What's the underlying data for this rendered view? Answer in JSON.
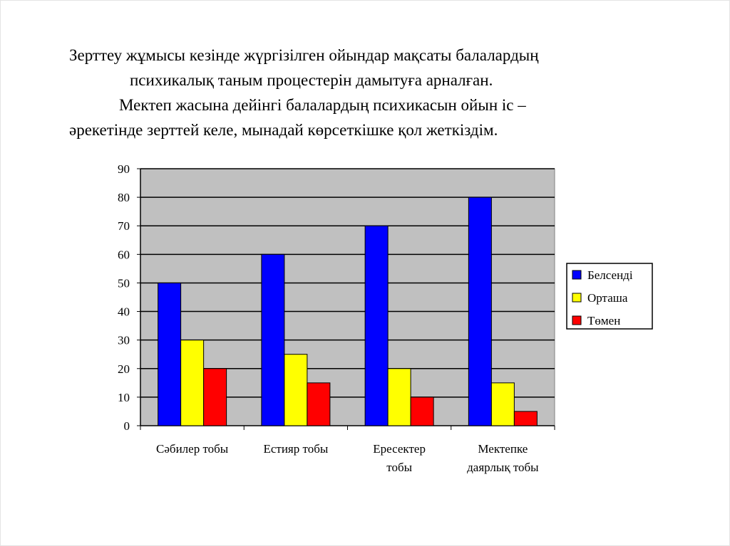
{
  "heading": {
    "lines": [
      "Зерттеу жұмысы кезінде жүргізілген ойындар мақсаты балалардың",
      "психикалық таным процестерін дамытуға арналған.",
      "Мектеп жасына дейінгі балалардың психикасын ойын іс –",
      "әрекетінде зерттей келе, мынадай көрсеткішке қол жеткіздім."
    ]
  },
  "chart_data": {
    "type": "bar",
    "title": "",
    "xlabel": "",
    "ylabel": "",
    "ylim": [
      0,
      90
    ],
    "yticks": [
      0,
      10,
      20,
      30,
      40,
      50,
      60,
      70,
      80,
      90
    ],
    "grid": true,
    "legend_position": "right",
    "categories": [
      [
        "Сәбилер тобы"
      ],
      [
        "Естияр тобы"
      ],
      [
        "Ересектер",
        "тобы"
      ],
      [
        "Мектепке",
        "даярлық тобы"
      ]
    ],
    "series": [
      {
        "name": "Белсенді",
        "color": "#0000FF",
        "values": [
          50,
          60,
          70,
          80
        ]
      },
      {
        "name": "Орташа",
        "color": "#FFFF00",
        "values": [
          30,
          25,
          20,
          15
        ]
      },
      {
        "name": "Төмен",
        "color": "#FF0000",
        "values": [
          20,
          15,
          10,
          5
        ]
      }
    ],
    "plot_background": "#C0C0C0"
  }
}
